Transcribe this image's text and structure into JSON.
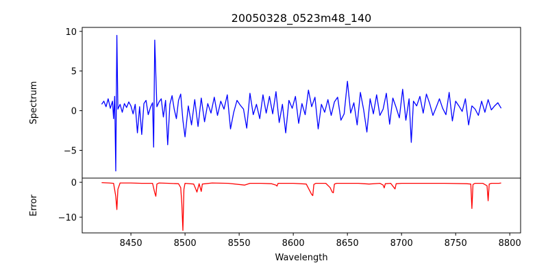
{
  "chart_data": {
    "type": "line",
    "title": "20050328_0523m48_140",
    "xlabel": "Wavelength",
    "xlim": [
      8405,
      8810
    ],
    "xticks": [
      8450,
      8500,
      8550,
      8600,
      8650,
      8700,
      8750,
      8800
    ],
    "panels": [
      {
        "name": "spectrum-panel",
        "ylabel": "Spectrum",
        "ylim": [
          -8.5,
          10.5
        ],
        "yticks": [
          -5,
          0,
          5,
          10
        ],
        "color": "#0000ff",
        "x": [
          8423,
          8425,
          8427,
          8429,
          8431,
          8433,
          8434,
          8435,
          8436,
          8437,
          8438,
          8440,
          8442,
          8444,
          8446,
          8448,
          8450,
          8452,
          8454,
          8456,
          8458,
          8460,
          8462,
          8464,
          8466,
          8468,
          8470,
          8471,
          8472,
          8474,
          8476,
          8478,
          8480,
          8482,
          8484,
          8486,
          8488,
          8490,
          8492,
          8494,
          8496,
          8498,
          8500,
          8503,
          8506,
          8509,
          8512,
          8515,
          8518,
          8521,
          8524,
          8527,
          8530,
          8533,
          8536,
          8539,
          8542,
          8545,
          8548,
          8551,
          8554,
          8557,
          8560,
          8563,
          8566,
          8569,
          8572,
          8575,
          8578,
          8581,
          8584,
          8587,
          8590,
          8593,
          8596,
          8599,
          8602,
          8605,
          8608,
          8611,
          8614,
          8617,
          8620,
          8623,
          8626,
          8629,
          8632,
          8635,
          8638,
          8641,
          8644,
          8647,
          8650,
          8653,
          8656,
          8659,
          8662,
          8665,
          8668,
          8671,
          8674,
          8677,
          8680,
          8683,
          8686,
          8689,
          8692,
          8695,
          8698,
          8701,
          8704,
          8707,
          8709,
          8711,
          8714,
          8717,
          8720,
          8723,
          8726,
          8729,
          8732,
          8735,
          8738,
          8741,
          8744,
          8747,
          8750,
          8753,
          8756,
          8759,
          8762,
          8765,
          8768,
          8771,
          8774,
          8777,
          8780,
          8783,
          8786,
          8789,
          8792
        ],
        "y": [
          0.8,
          1.2,
          0.5,
          1.5,
          0.3,
          1.2,
          -1.0,
          1.8,
          -7.6,
          9.5,
          0.2,
          0.8,
          -0.2,
          0.9,
          0.4,
          1.1,
          0.6,
          -0.4,
          0.8,
          -2.8,
          0.5,
          -3.0,
          0.9,
          1.3,
          -0.5,
          0.4,
          1.0,
          -4.6,
          8.9,
          0.5,
          1.1,
          1.5,
          -0.8,
          1.3,
          -4.3,
          0.8,
          1.9,
          0.2,
          -1.0,
          1.3,
          2.1,
          -1.2,
          -3.3,
          0.6,
          -1.8,
          1.4,
          -2.0,
          1.6,
          -1.4,
          0.9,
          -0.3,
          1.7,
          -0.6,
          1.2,
          0.2,
          2.0,
          -2.3,
          -0.2,
          1.3,
          0.7,
          0.2,
          -2.2,
          2.2,
          -0.5,
          0.8,
          -1.0,
          2.0,
          -0.3,
          1.8,
          -0.4,
          2.4,
          -1.5,
          0.8,
          -2.8,
          1.3,
          0.3,
          1.8,
          -1.6,
          0.9,
          -0.5,
          2.6,
          0.5,
          1.7,
          -2.3,
          0.8,
          -0.2,
          1.4,
          -0.6,
          1.1,
          1.7,
          -1.2,
          -0.4,
          3.7,
          -0.3,
          1.0,
          -1.8,
          2.3,
          0.1,
          -2.7,
          1.5,
          -0.4,
          2.0,
          -0.6,
          0.2,
          2.2,
          -1.7,
          1.6,
          0.4,
          -0.9,
          2.7,
          -1.2,
          1.5,
          -4.0,
          1.2,
          0.6,
          1.8,
          -0.3,
          2.1,
          0.9,
          -0.6,
          0.4,
          1.5,
          0.3,
          -0.5,
          2.3,
          -1.3,
          1.2,
          0.6,
          -0.1,
          1.5,
          -1.8,
          0.6,
          0.2,
          -0.6,
          1.2,
          -0.2,
          1.4,
          0.1,
          0.6,
          1.0,
          0.3
        ]
      },
      {
        "name": "error-panel",
        "ylabel": "Error",
        "ylim": [
          -14.5,
          1.2
        ],
        "yticks": [
          -10,
          0
        ],
        "color": "#ff0000",
        "x": [
          8423,
          8430,
          8434,
          8436,
          8437,
          8438,
          8440,
          8450,
          8460,
          8470,
          8472,
          8473,
          8474,
          8476,
          8485,
          8494,
          8496,
          8497,
          8498,
          8499,
          8500,
          8508,
          8510,
          8511,
          8513,
          8515,
          8516,
          8525,
          8540,
          8555,
          8560,
          8570,
          8580,
          8584,
          8585,
          8586,
          8600,
          8612,
          8617,
          8618,
          8619,
          8621,
          8630,
          8634,
          8636,
          8637,
          8638,
          8640,
          8650,
          8660,
          8665,
          8670,
          8680,
          8683,
          8684,
          8685,
          8690,
          8693,
          8694,
          8695,
          8700,
          8720,
          8740,
          8760,
          8764,
          8765,
          8766,
          8768,
          8775,
          8779,
          8780,
          8781,
          8783,
          8790,
          8792
        ],
        "y": [
          -0.1,
          -0.2,
          -0.3,
          -4.0,
          -7.8,
          -2.0,
          -0.2,
          -0.2,
          -0.3,
          -0.3,
          -3.0,
          -4.0,
          -0.5,
          -0.2,
          -0.3,
          -0.4,
          -1.5,
          -6.0,
          -13.8,
          -2.0,
          -0.3,
          -0.5,
          -2.0,
          -2.8,
          -0.4,
          -2.6,
          -0.5,
          -0.2,
          -0.3,
          -0.8,
          -0.3,
          -0.3,
          -0.4,
          -0.8,
          -1.1,
          -0.3,
          -0.3,
          -0.5,
          -3.5,
          -3.8,
          -0.6,
          -0.3,
          -0.3,
          -1.5,
          -2.8,
          -3.0,
          -0.5,
          -0.3,
          -0.3,
          -0.3,
          -0.4,
          -0.5,
          -0.3,
          -0.8,
          -1.6,
          -0.4,
          -0.3,
          -1.5,
          -1.9,
          -0.4,
          -0.3,
          -0.3,
          -0.3,
          -0.4,
          -0.5,
          -7.5,
          -0.6,
          -0.3,
          -0.3,
          -1.0,
          -5.3,
          -0.5,
          -0.3,
          -0.3,
          -0.2
        ]
      }
    ]
  }
}
